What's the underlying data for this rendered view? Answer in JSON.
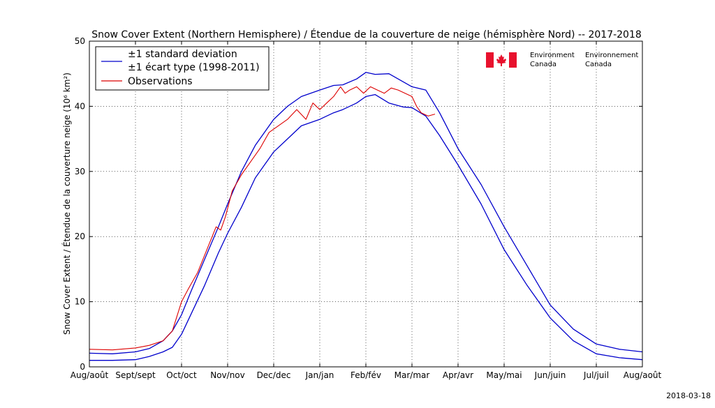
{
  "chart_data": {
    "type": "line",
    "title": "Snow Cover Extent (Northern Hemisphere) / Étendue de la couverture de neige (hémisphère Nord) -- 2017-2018",
    "ylabel": "Snow Cover Extent / Étendue de la couverture neige (10⁶ km²)",
    "xlabel": "",
    "ylim": [
      0,
      50
    ],
    "xlim": [
      0,
      12
    ],
    "yticks": [
      0,
      10,
      20,
      30,
      40,
      50
    ],
    "categories": [
      "Aug/août",
      "Sept/sept",
      "Oct/oct",
      "Nov/nov",
      "Dec/dec",
      "Jan/jan",
      "Feb/fév",
      "Mar/mar",
      "Apr/avr",
      "May/mai",
      "Jun/juin",
      "Jul/juil",
      "Aug/août"
    ],
    "grid": true,
    "legend_position": "top-left",
    "series": [
      {
        "name": "±1 standard deviation",
        "name_line2": "±1 écart type (1998-2011)",
        "color": "#0000cc",
        "role": "upper",
        "x": [
          0,
          0.5,
          1,
          1.3,
          1.6,
          1.8,
          2.0,
          2.2,
          2.5,
          2.8,
          3.0,
          3.3,
          3.6,
          4.0,
          4.3,
          4.6,
          5.0,
          5.3,
          5.5,
          5.8,
          6.0,
          6.2,
          6.5,
          6.8,
          7.0,
          7.3,
          7.6,
          8.0,
          8.5,
          9.0,
          9.5,
          10.0,
          10.5,
          11.0,
          11.5,
          12.0
        ],
        "y": [
          2.1,
          2.0,
          2.3,
          2.8,
          4.0,
          5.5,
          8.0,
          11.5,
          16.5,
          21.5,
          25.0,
          30.0,
          34.0,
          38.0,
          40.0,
          41.5,
          42.5,
          43.2,
          43.3,
          44.2,
          45.2,
          44.9,
          45.0,
          43.8,
          43.0,
          42.5,
          39.0,
          33.5,
          28.0,
          21.5,
          15.5,
          9.5,
          5.8,
          3.5,
          2.7,
          2.3
        ]
      },
      {
        "name": "",
        "color": "#0000cc",
        "role": "lower",
        "x": [
          0,
          0.5,
          1,
          1.3,
          1.6,
          1.8,
          2.0,
          2.2,
          2.5,
          2.8,
          3.0,
          3.3,
          3.6,
          4.0,
          4.3,
          4.6,
          5.0,
          5.3,
          5.5,
          5.8,
          6.0,
          6.2,
          6.5,
          6.8,
          7.0,
          7.3,
          7.6,
          8.0,
          8.5,
          9.0,
          9.5,
          10.0,
          10.5,
          11.0,
          11.5,
          12.0
        ],
        "y": [
          1.0,
          1.0,
          1.1,
          1.6,
          2.3,
          3.0,
          5.0,
          8.0,
          12.5,
          17.5,
          20.5,
          24.5,
          29.0,
          33.0,
          35.0,
          37.0,
          38.0,
          39.0,
          39.5,
          40.5,
          41.5,
          41.8,
          40.5,
          39.9,
          39.8,
          38.5,
          35.5,
          31.0,
          25.0,
          18.0,
          12.5,
          7.5,
          4.0,
          2.0,
          1.4,
          1.1
        ]
      },
      {
        "name": "Observations",
        "color": "#dd0000",
        "role": "observed",
        "x": [
          0,
          0.5,
          1,
          1.3,
          1.6,
          1.8,
          2.0,
          2.15,
          2.35,
          2.55,
          2.75,
          2.85,
          2.95,
          3.1,
          3.3,
          3.5,
          3.7,
          3.9,
          4.1,
          4.3,
          4.5,
          4.7,
          4.85,
          5.0,
          5.15,
          5.3,
          5.45,
          5.55,
          5.65,
          5.8,
          5.95,
          6.1,
          6.25,
          6.4,
          6.55,
          6.7,
          6.85,
          7.0,
          7.1,
          7.2,
          7.35,
          7.5
        ],
        "y": [
          2.7,
          2.6,
          2.9,
          3.3,
          4.0,
          5.5,
          10.0,
          12.0,
          14.5,
          18.0,
          21.5,
          21.0,
          23.0,
          27.0,
          29.5,
          31.5,
          33.5,
          36.0,
          37.0,
          38.0,
          39.5,
          38.0,
          40.5,
          39.5,
          40.5,
          41.5,
          43.0,
          42.0,
          42.5,
          43.0,
          42.0,
          43.0,
          42.5,
          42.0,
          42.8,
          42.5,
          42.0,
          41.5,
          40.0,
          39.0,
          38.5,
          38.8
        ]
      }
    ]
  },
  "logo": {
    "en_line1": "Environment",
    "en_line2": "Canada",
    "fr_line1": "Environnement",
    "fr_line2": "Canada"
  },
  "footer": {
    "date": "2018-03-18"
  }
}
